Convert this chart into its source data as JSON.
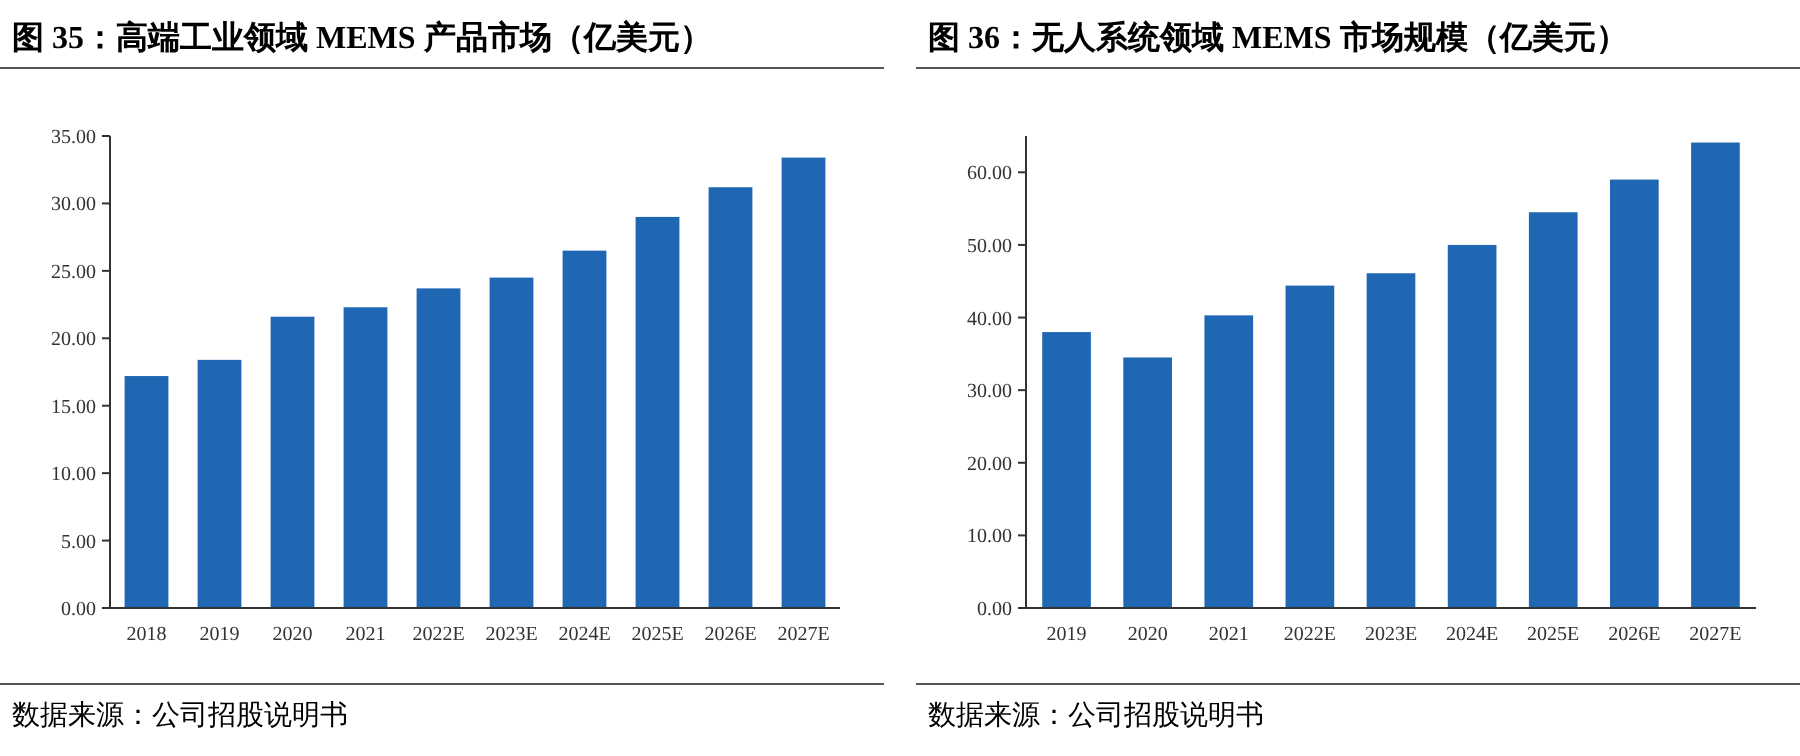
{
  "chart_data": [
    {
      "type": "bar",
      "title": "图 35：高端工业领域 MEMS 产品市场（亿美元）",
      "categories": [
        "2018",
        "2019",
        "2020",
        "2021",
        "2022E",
        "2023E",
        "2024E",
        "2025E",
        "2026E",
        "2027E"
      ],
      "values": [
        17.2,
        18.4,
        21.6,
        22.3,
        23.7,
        24.5,
        26.5,
        29.0,
        31.2,
        33.4
      ],
      "color": "#1f66b3",
      "ylim": [
        0,
        35
      ],
      "yticks": [
        {
          "value": 0,
          "label": "0.00"
        },
        {
          "value": 5,
          "label": "5.00"
        },
        {
          "value": 10,
          "label": "10.00"
        },
        {
          "value": 15,
          "label": "15.00"
        },
        {
          "value": 20,
          "label": "20.00"
        },
        {
          "value": 25,
          "label": "25.00"
        },
        {
          "value": 30,
          "label": "30.00"
        },
        {
          "value": 35,
          "label": "35.00"
        }
      ],
      "annotations": [
        "数据来源：公司招股说明书"
      ]
    },
    {
      "type": "bar",
      "title": "图 36：无人系统领域 MEMS 市场规模（亿美元）",
      "categories": [
        "2019",
        "2020",
        "2021",
        "2022E",
        "2023E",
        "2024E",
        "2025E",
        "2026E",
        "2027E"
      ],
      "values": [
        38.0,
        34.5,
        40.3,
        44.4,
        46.1,
        50.0,
        54.5,
        59.0,
        64.1
      ],
      "color": "#1f66b3",
      "ylim": [
        0,
        65
      ],
      "yticks": [
        {
          "value": 0,
          "label": "0.00"
        },
        {
          "value": 10,
          "label": "10.00"
        },
        {
          "value": 20,
          "label": "20.00"
        },
        {
          "value": 30,
          "label": "30.00"
        },
        {
          "value": 40,
          "label": "40.00"
        },
        {
          "value": 50,
          "label": "50.00"
        },
        {
          "value": 60,
          "label": "60.00"
        }
      ],
      "annotations": [
        "数据来源：公司招股说明书"
      ]
    }
  ]
}
